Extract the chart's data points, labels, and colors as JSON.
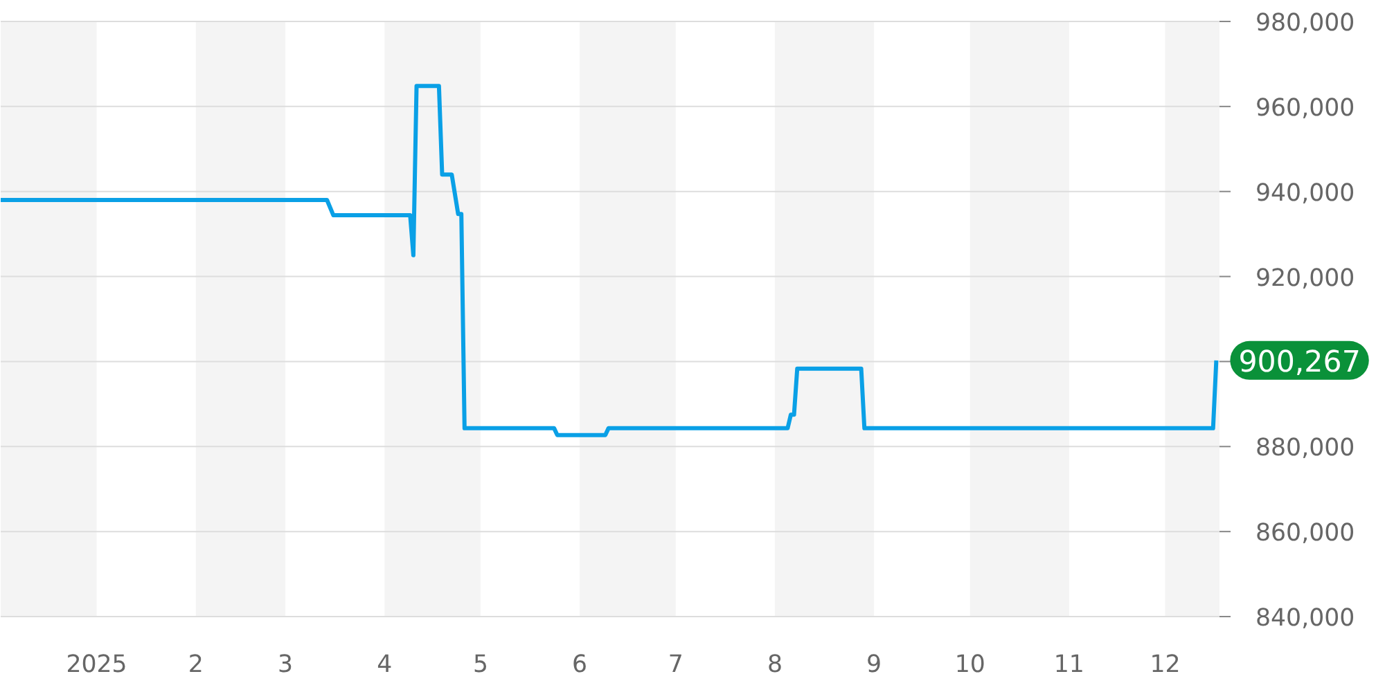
{
  "chart_data": {
    "type": "step",
    "x": [
      "2024-12-02",
      "2025-03-14",
      "2025-03-16",
      "2025-04-09",
      "2025-04-10",
      "2025-04-11",
      "2025-04-18",
      "2025-04-19",
      "2025-04-22",
      "2025-04-24",
      "2025-04-25",
      "2025-04-26",
      "2025-05-24",
      "2025-05-25",
      "2025-06-09",
      "2025-06-10",
      "2025-08-05",
      "2025-08-06",
      "2025-08-07",
      "2025-08-08",
      "2025-08-28",
      "2025-08-29",
      "2025-12-16",
      "2025-12-17"
    ],
    "series": [
      {
        "color": "#0aa0e6",
        "values": [
          938000,
          938000,
          934400,
          934400,
          925000,
          964800,
          964800,
          944000,
          944000,
          934700,
          934700,
          884300,
          884300,
          882700,
          882700,
          884300,
          884300,
          887500,
          887500,
          898300,
          898300,
          884300,
          884300,
          900267
        ]
      }
    ],
    "xlim": [
      "2024-12-02",
      "2025-12-18"
    ],
    "ylim": [
      840000,
      980000
    ],
    "xticks": [
      {
        "value": "2025-01-01",
        "label": "2025"
      },
      {
        "value": "2025-02-01",
        "label": "2"
      },
      {
        "value": "2025-03-01",
        "label": "3"
      },
      {
        "value": "2025-04-01",
        "label": "4"
      },
      {
        "value": "2025-05-01",
        "label": "5"
      },
      {
        "value": "2025-06-01",
        "label": "6"
      },
      {
        "value": "2025-07-01",
        "label": "7"
      },
      {
        "value": "2025-08-01",
        "label": "8"
      },
      {
        "value": "2025-09-01",
        "label": "9"
      },
      {
        "value": "2025-10-01",
        "label": "10"
      },
      {
        "value": "2025-11-01",
        "label": "11"
      },
      {
        "value": "2025-12-01",
        "label": "12"
      }
    ],
    "yticks": [
      {
        "value": 840000,
        "label": "840,000"
      },
      {
        "value": 860000,
        "label": "860,000"
      },
      {
        "value": 880000,
        "label": "880,000"
      },
      {
        "value": 900000,
        "label": null
      },
      {
        "value": 920000,
        "label": "920,000"
      },
      {
        "value": 940000,
        "label": "940,000"
      },
      {
        "value": 960000,
        "label": "960,000"
      },
      {
        "value": 980000,
        "label": "980,000"
      }
    ],
    "grid": "y",
    "bands": [
      {
        "axis": "x",
        "from": "2024-12-02",
        "to": "2025-01-01",
        "color": "#f4f4f4"
      },
      {
        "axis": "x",
        "from": "2025-02-01",
        "to": "2025-03-01",
        "color": "#f4f4f4"
      },
      {
        "axis": "x",
        "from": "2025-04-01",
        "to": "2025-05-01",
        "color": "#f4f4f4"
      },
      {
        "axis": "x",
        "from": "2025-06-01",
        "to": "2025-07-01",
        "color": "#f4f4f4"
      },
      {
        "axis": "x",
        "from": "2025-08-01",
        "to": "2025-09-01",
        "color": "#f4f4f4"
      },
      {
        "axis": "x",
        "from": "2025-10-01",
        "to": "2025-11-01",
        "color": "#f4f4f4"
      },
      {
        "axis": "x",
        "from": "2025-12-01",
        "to": "2025-12-18",
        "color": "#f4f4f4"
      }
    ],
    "annotations": [
      {
        "text": "900,267",
        "x": "2025-12-17",
        "y": 900267
      }
    ]
  }
}
